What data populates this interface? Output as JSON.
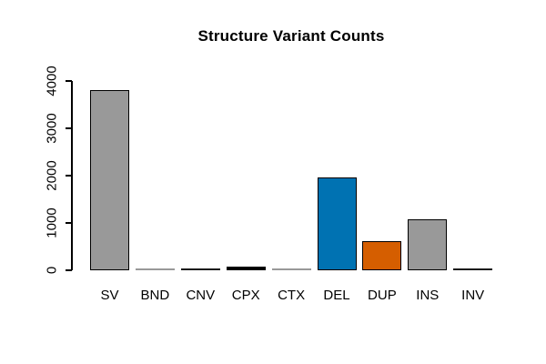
{
  "title": "Structure Variant Counts",
  "chart_data": {
    "type": "bar",
    "title": "Structure Variant Counts",
    "categories": [
      "SV",
      "BND",
      "CNV",
      "CPX",
      "CTX",
      "DEL",
      "DUP",
      "INS",
      "INV"
    ],
    "values": [
      3800,
      5,
      25,
      70,
      5,
      1960,
      620,
      1080,
      15
    ],
    "series": [
      {
        "name": "Structure Variant Counts",
        "values": [
          3800,
          5,
          25,
          70,
          5,
          1960,
          620,
          1080,
          15
        ]
      }
    ],
    "bar_fill_colors": [
      "#999999",
      "#999999",
      "#1a1a1a",
      "#009E73",
      "#999999",
      "#0072B2",
      "#D55E00",
      "#999999",
      "#1a1a1a"
    ],
    "bar_border_colors": [
      "#000000",
      "#999999",
      "#1a1a1a",
      "#000000",
      "#999999",
      "#000000",
      "#000000",
      "#000000",
      "#1a1a1a"
    ],
    "xlabel": "",
    "ylabel": "",
    "ylim": [
      0,
      4000
    ],
    "yticks": [
      0,
      1000,
      2000,
      3000,
      4000
    ],
    "ytick_labels": [
      "0",
      "1000",
      "2000",
      "3000",
      "4000"
    ],
    "grid": false,
    "legend_position": "none",
    "background_color": "#ffffff",
    "axis_color": "#000000"
  }
}
